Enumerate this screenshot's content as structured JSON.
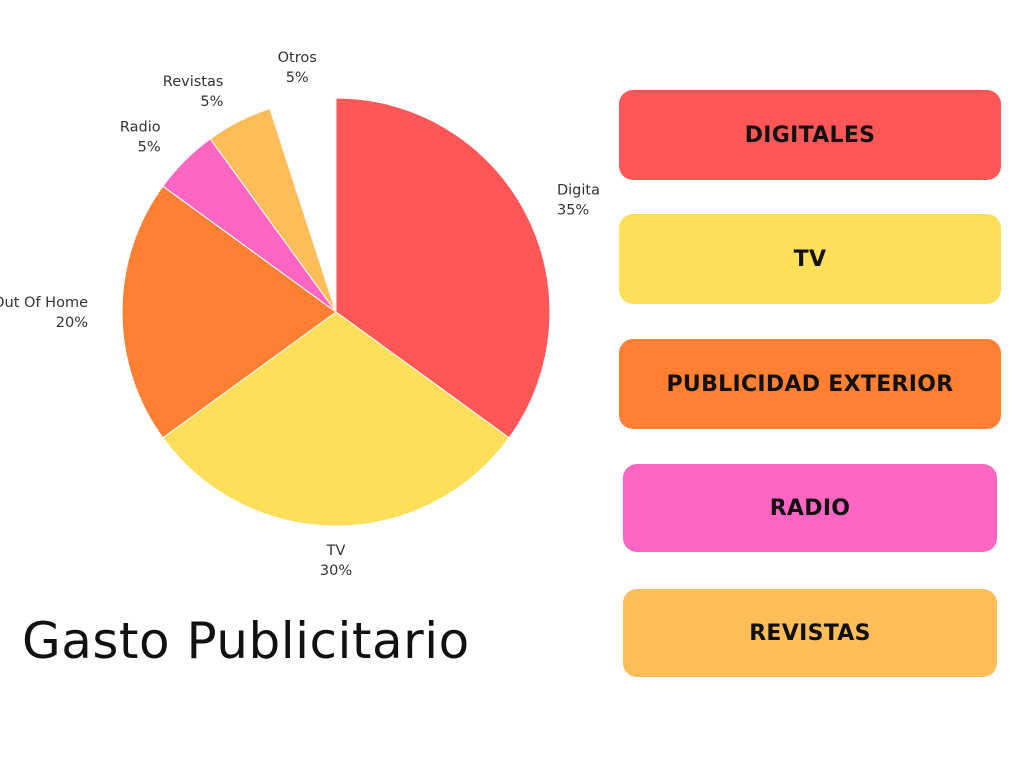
{
  "title": "Gasto Publicitario",
  "chart_data": {
    "type": "pie",
    "categories": [
      "Digitales",
      "TV",
      "Out Of Home",
      "Radio",
      "Revistas",
      "Otros"
    ],
    "values": [
      35,
      30,
      20,
      5,
      5,
      5
    ],
    "value_labels": [
      "35%",
      "30%",
      "20%",
      "5%",
      "5%",
      "5%"
    ],
    "colors": [
      "#FF5757",
      "#FFDE59",
      "#FF8033",
      "#FF66C4",
      "#FFBD59",
      "#FFFFFF"
    ],
    "start_angle_deg": 0,
    "direction": "clockwise",
    "legend_placement": "right"
  },
  "legend_buttons": [
    {
      "label": "DIGITALES",
      "color": "#FF5757"
    },
    {
      "label": "TV",
      "color": "#FFDE59"
    },
    {
      "label": "PUBLICIDAD EXTERIOR",
      "color": "#FF8033"
    },
    {
      "label": "RADIO",
      "color": "#FF66C4"
    },
    {
      "label": "REVISTAS",
      "color": "#FFBD59"
    }
  ]
}
